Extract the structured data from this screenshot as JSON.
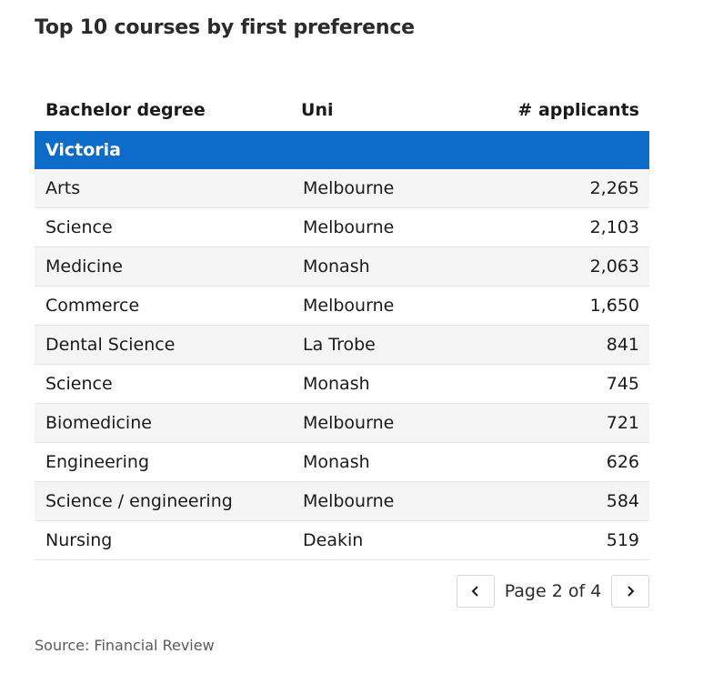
{
  "title": "Top 10 courses by first preference",
  "chart_data": {
    "type": "table",
    "columns": [
      "Bachelor degree",
      "Uni",
      "# applicants"
    ],
    "group": "Victoria",
    "rows": [
      {
        "degree": "Arts",
        "uni": "Melbourne",
        "applicants": "2,265"
      },
      {
        "degree": "Science",
        "uni": "Melbourne",
        "applicants": "2,103"
      },
      {
        "degree": "Medicine",
        "uni": "Monash",
        "applicants": "2,063"
      },
      {
        "degree": "Commerce",
        "uni": "Melbourne",
        "applicants": "1,650"
      },
      {
        "degree": "Dental Science",
        "uni": "La Trobe",
        "applicants": "841"
      },
      {
        "degree": "Science",
        "uni": "Monash",
        "applicants": "745"
      },
      {
        "degree": "Biomedicine",
        "uni": "Melbourne",
        "applicants": "721"
      },
      {
        "degree": "Engineering",
        "uni": "Monash",
        "applicants": "626"
      },
      {
        "degree": "Science / engineering",
        "uni": "Melbourne",
        "applicants": "584"
      },
      {
        "degree": "Nursing",
        "uni": "Deakin",
        "applicants": "519"
      }
    ]
  },
  "pagination": {
    "label": "Page 2 of 4"
  },
  "icons": {
    "prev": "chevron-left-icon",
    "next": "chevron-right-icon"
  },
  "colors": {
    "group_header": "#0d6bc9",
    "stripe": "#f5f5f5"
  },
  "source": "Source: Financial Review"
}
